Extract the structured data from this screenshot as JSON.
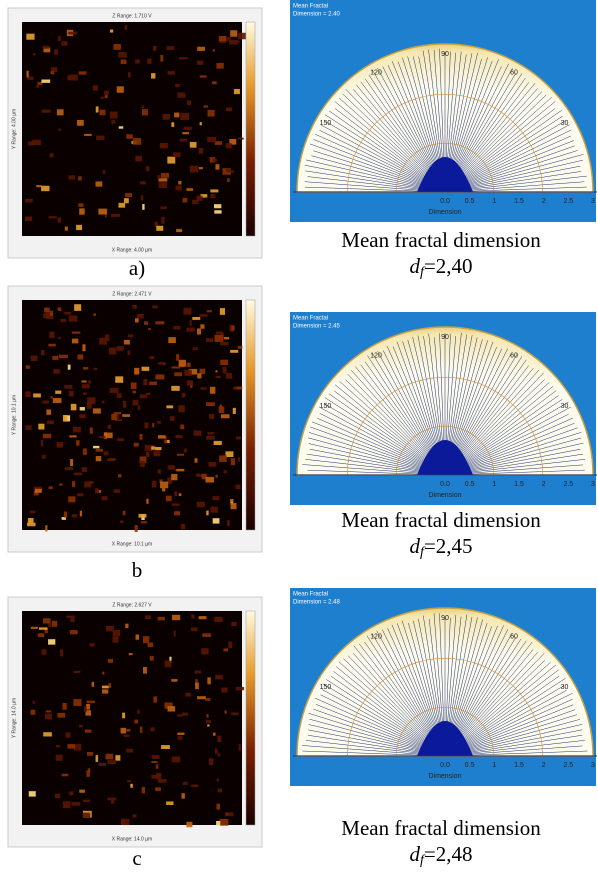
{
  "panels": [
    {
      "label": "a)",
      "caption": "Mean fractal dimension",
      "symbol": "d",
      "subscript": "f",
      "equals": "=2,40",
      "afm": {
        "z_range": "Z Range: 1.710 V",
        "x_range": "X Range: 4.00 µm",
        "y_range": "Y Range: 4.00 µm"
      },
      "polar": {
        "header": [
          "Mean Fractal",
          "Dimension = 2.40"
        ]
      }
    },
    {
      "label": "b",
      "caption": "Mean fractal dimension",
      "symbol": "d",
      "subscript": "f",
      "equals": "=2,45",
      "afm": {
        "z_range": "Z Range: 2.471 V",
        "x_range": "X Range: 10.1 µm",
        "y_range": "Y Range: 10.1 µm"
      },
      "polar": {
        "header": [
          "Mean Fractal",
          "Dimension = 2.45"
        ]
      }
    },
    {
      "label": "c",
      "caption": "Mean fractal dimension",
      "symbol": "d",
      "subscript": "f",
      "equals": "=2,48",
      "afm": {
        "z_range": "Z Range: 2.627 V",
        "x_range": "X Range: 14.0 µm",
        "y_range": "Y Range: 14.0 µm"
      },
      "polar": {
        "header": [
          "Mean Fractal",
          "Dimension = 2.48"
        ]
      }
    }
  ],
  "polar_axis": {
    "angles": [
      "150",
      "120",
      "90",
      "60",
      "30"
    ],
    "radial": [
      "0.0",
      "0.5",
      "1",
      "1.5",
      "2",
      "2.5",
      "3"
    ],
    "title": "Dimension"
  }
}
